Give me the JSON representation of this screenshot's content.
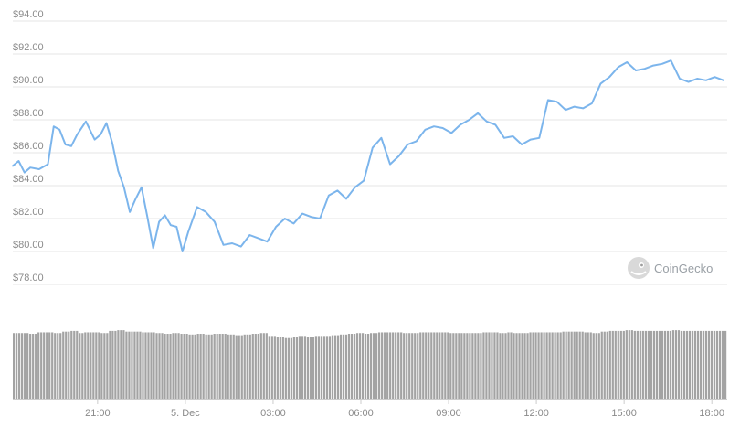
{
  "chart_data": {
    "type": "line",
    "y_tick_labels": [
      "$94.00",
      "$92.00",
      "$90.00",
      "$88.00",
      "$86.00",
      "$84.00",
      "$82.00",
      "$80.00",
      "$78.00"
    ],
    "y_ticks": [
      94,
      92,
      90,
      88,
      86,
      84,
      82,
      80,
      78
    ],
    "ylim": [
      77,
      95
    ],
    "x_tick_labels": [
      "21:00",
      "5. Dec",
      "03:00",
      "06:00",
      "09:00",
      "12:00",
      "15:00",
      "18:00"
    ],
    "x_ticks_hours": [
      21,
      24,
      27,
      30,
      33,
      36,
      39,
      42
    ],
    "xlim_hours": [
      18.1,
      42.4
    ],
    "grid": true,
    "series": [
      {
        "color": "#7cb5ec",
        "x_hours": [
          18.1,
          18.3,
          18.5,
          18.7,
          19.0,
          19.3,
          19.5,
          19.7,
          19.9,
          20.1,
          20.3,
          20.6,
          20.9,
          21.1,
          21.3,
          21.5,
          21.7,
          21.9,
          22.1,
          22.3,
          22.5,
          22.7,
          22.9,
          23.1,
          23.3,
          23.5,
          23.7,
          23.9,
          24.1,
          24.4,
          24.7,
          25.0,
          25.3,
          25.6,
          25.9,
          26.2,
          26.5,
          26.8,
          27.1,
          27.4,
          27.7,
          28.0,
          28.3,
          28.6,
          28.9,
          29.2,
          29.5,
          29.8,
          30.1,
          30.4,
          30.7,
          31.0,
          31.3,
          31.6,
          31.9,
          32.2,
          32.5,
          32.8,
          33.1,
          33.4,
          33.7,
          34.0,
          34.3,
          34.6,
          34.9,
          35.2,
          35.5,
          35.8,
          36.1,
          36.4,
          36.7,
          37.0,
          37.3,
          37.6,
          37.9,
          38.2,
          38.5,
          38.8,
          39.1,
          39.4,
          39.7,
          40.0,
          40.3,
          40.6,
          40.9,
          41.2,
          41.5,
          41.8,
          42.1,
          42.4
        ],
        "values": [
          85.2,
          85.5,
          84.8,
          85.1,
          85.0,
          85.3,
          87.6,
          87.4,
          86.5,
          86.4,
          87.1,
          87.9,
          86.8,
          87.1,
          87.8,
          86.6,
          84.9,
          83.9,
          82.4,
          83.2,
          83.9,
          82.1,
          80.2,
          81.8,
          82.2,
          81.6,
          81.5,
          80.0,
          81.2,
          82.7,
          82.4,
          81.8,
          80.4,
          80.5,
          80.3,
          81.0,
          80.8,
          80.6,
          81.5,
          82.0,
          81.7,
          82.3,
          82.1,
          82.0,
          83.4,
          83.7,
          83.2,
          83.9,
          84.3,
          86.3,
          86.9,
          85.3,
          85.8,
          86.5,
          86.7,
          87.4,
          87.6,
          87.5,
          87.2,
          87.7,
          88.0,
          88.4,
          87.9,
          87.7,
          86.9,
          87.0,
          86.5,
          86.8,
          86.9,
          89.2,
          89.1,
          88.6,
          88.8,
          88.7,
          89.0,
          90.2,
          90.6,
          91.2,
          91.5,
          91.0,
          91.1,
          91.3,
          91.4,
          91.6,
          90.5,
          90.3,
          90.5,
          90.4,
          90.6,
          90.4
        ]
      }
    ],
    "volume": {
      "color": "#a3a3a3",
      "relative_heights": [
        0.92,
        0.92,
        0.91,
        0.93,
        0.93,
        0.92,
        0.94,
        0.95,
        0.92,
        0.93,
        0.93,
        0.92,
        0.95,
        0.96,
        0.94,
        0.94,
        0.93,
        0.93,
        0.92,
        0.91,
        0.92,
        0.91,
        0.9,
        0.91,
        0.9,
        0.91,
        0.91,
        0.9,
        0.89,
        0.9,
        0.91,
        0.92,
        0.88,
        0.86,
        0.85,
        0.86,
        0.88,
        0.87,
        0.88,
        0.88,
        0.89,
        0.9,
        0.91,
        0.92,
        0.91,
        0.92,
        0.93,
        0.93,
        0.93,
        0.92,
        0.92,
        0.93,
        0.93,
        0.93,
        0.93,
        0.92,
        0.92,
        0.92,
        0.92,
        0.93,
        0.93,
        0.92,
        0.93,
        0.92,
        0.92,
        0.93,
        0.93,
        0.93,
        0.93,
        0.94,
        0.94,
        0.94,
        0.93,
        0.92,
        0.94,
        0.95,
        0.95,
        0.96,
        0.95,
        0.95,
        0.95,
        0.95,
        0.95,
        0.96,
        0.95,
        0.95,
        0.95,
        0.95,
        0.95,
        0.95
      ]
    }
  },
  "watermark": {
    "text": "CoinGecko",
    "icon": "gecko-logo-icon"
  }
}
